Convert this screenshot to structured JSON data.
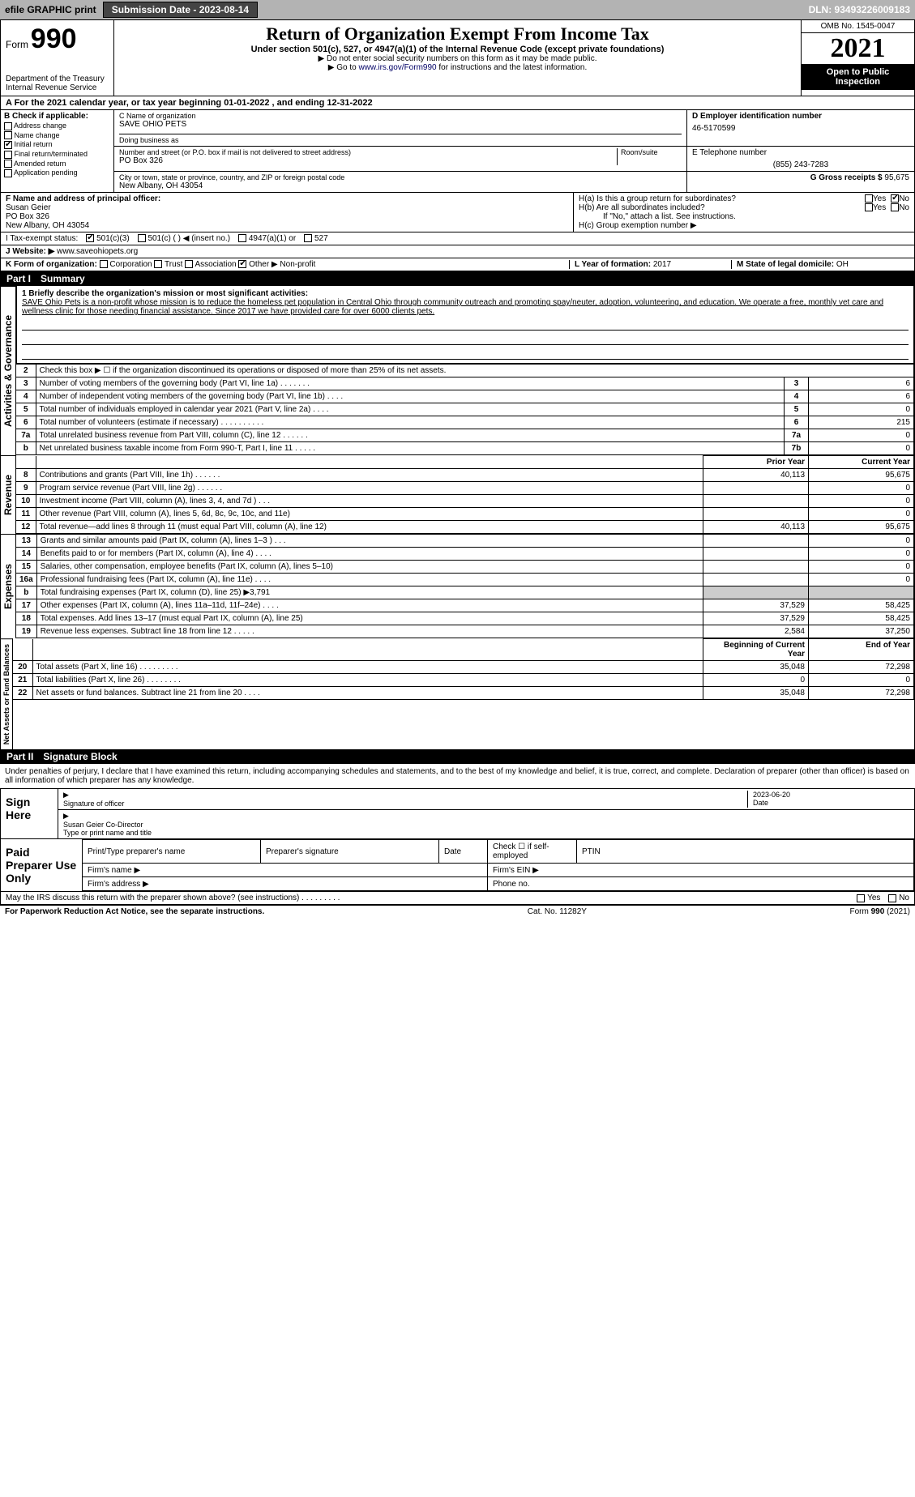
{
  "topbar": {
    "efile_label": "efile GRAPHIC print",
    "submission_label": "Submission Date - 2023-08-14",
    "dln": "DLN: 93493226009183"
  },
  "header": {
    "form_prefix": "Form",
    "form_number": "990",
    "main_title": "Return of Organization Exempt From Income Tax",
    "subtitle": "Under section 501(c), 527, or 4947(a)(1) of the Internal Revenue Code (except private foundations)",
    "ssn_note": "▶ Do not enter social security numbers on this form as it may be made public.",
    "goto": "▶ Go to www.irs.gov/Form990 for instructions and the latest information.",
    "goto_url": "www.irs.gov/Form990",
    "omb": "OMB No. 1545-0047",
    "year": "2021",
    "open_public": "Open to Public Inspection",
    "dept": "Department of the Treasury",
    "irs": "Internal Revenue Service"
  },
  "line_A": "A For the 2021 calendar year, or tax year beginning 01-01-2022   , and ending 12-31-2022",
  "box_B": {
    "header": "B Check if applicable:",
    "opts": [
      "Address change",
      "Name change",
      "Initial return",
      "Final return/terminated",
      "Amended return",
      "Application pending"
    ],
    "checked_idx": 2
  },
  "box_C": {
    "label": "C Name of organization",
    "name": "SAVE OHIO PETS",
    "dba_label": "Doing business as",
    "addr_label": "Number and street (or P.O. box if mail is not delivered to street address)",
    "room_label": "Room/suite",
    "addr": "PO Box 326",
    "city_label": "City or town, state or province, country, and ZIP or foreign postal code",
    "city": "New Albany, OH  43054"
  },
  "box_D": {
    "label": "D Employer identification number",
    "value": "46-5170599"
  },
  "box_E": {
    "label": "E Telephone number",
    "value": "(855) 243-7283"
  },
  "box_G": {
    "label": "G Gross receipts $",
    "value": "95,675"
  },
  "box_F": {
    "label": "F Name and address of principal officer:",
    "name": "Susan Geier",
    "addr1": "PO Box 326",
    "addr2": "New Albany, OH  43054"
  },
  "box_H": {
    "a_label": "H(a)  Is this a group return for subordinates?",
    "a_yes": "Yes",
    "a_no": "No",
    "b_label": "H(b)  Are all subordinates included?",
    "b_yes": "Yes",
    "b_no": "No",
    "note": "If \"No,\" attach a list. See instructions.",
    "c_label": "H(c)  Group exemption number ▶"
  },
  "tax_exempt": {
    "label": "I   Tax-exempt status:",
    "c3": "501(c)(3)",
    "c": "501(c) (  ) ◀ (insert no.)",
    "a4947": "4947(a)(1) or",
    "s527": "527"
  },
  "website": {
    "label": "J   Website: ▶",
    "value": "www.saveohiopets.org"
  },
  "box_K": {
    "label": "K Form of organization:",
    "opts": [
      "Corporation",
      "Trust",
      "Association",
      "Other ▶"
    ],
    "other_val": "Non-profit",
    "checked_idx": 3
  },
  "box_L": {
    "label": "L Year of formation:",
    "value": "2017"
  },
  "box_M": {
    "label": "M State of legal domicile:",
    "value": "OH"
  },
  "part1": {
    "num": "Part I",
    "title": "Summary"
  },
  "mission": {
    "label": "1  Briefly describe the organization's mission or most significant activities:",
    "text": "SAVE Ohio Pets is a non-profit whose mission is to reduce the homeless pet population in Central Ohio through community outreach and promoting spay/neuter, adoption, volunteering, and education. We operate a free, monthly vet care and wellness clinic for those needing financial assistance. Since 2017 we have provided care for over 6000 clients pets."
  },
  "side_labels": {
    "gov": "Activities & Governance",
    "rev": "Revenue",
    "exp": "Expenses",
    "net": "Net Assets or Fund Balances"
  },
  "governance": [
    {
      "n": "2",
      "text": "Check this box ▶ ☐  if the organization discontinued its operations or disposed of more than 25% of its net assets.",
      "numcol": "",
      "val": ""
    },
    {
      "n": "3",
      "text": "Number of voting members of the governing body (Part VI, line 1a)  .     .     .     .     .     .     .",
      "numcol": "3",
      "val": "6"
    },
    {
      "n": "4",
      "text": "Number of independent voting members of the governing body (Part VI, line 1b)  .     .     .     .",
      "numcol": "4",
      "val": "6"
    },
    {
      "n": "5",
      "text": "Total number of individuals employed in calendar year 2021 (Part V, line 2a)  .     .     .     .",
      "numcol": "5",
      "val": "0"
    },
    {
      "n": "6",
      "text": "Total number of volunteers (estimate if necessary)   .     .     .     .     .     .     .     .     .     .",
      "numcol": "6",
      "val": "215"
    },
    {
      "n": "7a",
      "text": "Total unrelated business revenue from Part VIII, column (C), line 12  .     .     .     .     .     .",
      "numcol": "7a",
      "val": "0"
    },
    {
      "n": "b",
      "text": "Net unrelated business taxable income from Form 990-T, Part I, line 11  .     .     .     .     .",
      "numcol": "7b",
      "val": "0"
    }
  ],
  "year_headers": {
    "prior": "Prior Year",
    "current": "Current Year",
    "begin": "Beginning of Current Year",
    "end": "End of Year"
  },
  "revenue": [
    {
      "n": "8",
      "text": "Contributions and grants (Part VIII, line 1h)  .     .     .     .     .     .",
      "prior": "40,113",
      "curr": "95,675"
    },
    {
      "n": "9",
      "text": "Program service revenue (Part VIII, line 2g)  .     .     .     .     .     .",
      "prior": "",
      "curr": "0"
    },
    {
      "n": "10",
      "text": "Investment income (Part VIII, column (A), lines 3, 4, and 7d )  .     .     .",
      "prior": "",
      "curr": "0"
    },
    {
      "n": "11",
      "text": "Other revenue (Part VIII, column (A), lines 5, 6d, 8c, 9c, 10c, and 11e)",
      "prior": "",
      "curr": "0"
    },
    {
      "n": "12",
      "text": "Total revenue—add lines 8 through 11 (must equal Part VIII, column (A), line 12)",
      "prior": "40,113",
      "curr": "95,675"
    }
  ],
  "expenses": [
    {
      "n": "13",
      "text": "Grants and similar amounts paid (Part IX, column (A), lines 1–3 )  .     .     .",
      "prior": "",
      "curr": "0"
    },
    {
      "n": "14",
      "text": "Benefits paid to or for members (Part IX, column (A), line 4)  .     .     .     .",
      "prior": "",
      "curr": "0"
    },
    {
      "n": "15",
      "text": "Salaries, other compensation, employee benefits (Part IX, column (A), lines 5–10)",
      "prior": "",
      "curr": "0"
    },
    {
      "n": "16a",
      "text": "Professional fundraising fees (Part IX, column (A), line 11e)  .     .     .     .",
      "prior": "",
      "curr": "0"
    },
    {
      "n": "b",
      "text": "Total fundraising expenses (Part IX, column (D), line 25) ▶3,791",
      "prior": "—",
      "curr": "—"
    },
    {
      "n": "17",
      "text": "Other expenses (Part IX, column (A), lines 11a–11d, 11f–24e)  .     .     .     .",
      "prior": "37,529",
      "curr": "58,425"
    },
    {
      "n": "18",
      "text": "Total expenses. Add lines 13–17 (must equal Part IX, column (A), line 25)",
      "prior": "37,529",
      "curr": "58,425"
    },
    {
      "n": "19",
      "text": "Revenue less expenses. Subtract line 18 from line 12  .     .     .     .     .",
      "prior": "2,584",
      "curr": "37,250"
    }
  ],
  "netassets": [
    {
      "n": "20",
      "text": "Total assets (Part X, line 16)  .     .     .     .     .     .     .     .     .",
      "prior": "35,048",
      "curr": "72,298"
    },
    {
      "n": "21",
      "text": "Total liabilities (Part X, line 26)  .     .     .     .     .     .     .     .",
      "prior": "0",
      "curr": "0"
    },
    {
      "n": "22",
      "text": "Net assets or fund balances. Subtract line 21 from line 20  .     .     .     .",
      "prior": "35,048",
      "curr": "72,298"
    }
  ],
  "part2": {
    "num": "Part II",
    "title": "Signature Block"
  },
  "penalty": "Under penalties of perjury, I declare that I have examined this return, including accompanying schedules and statements, and to the best of my knowledge and belief, it is true, correct, and complete. Declaration of preparer (other than officer) is based on all information of which preparer has any knowledge.",
  "sign": {
    "label": "Sign Here",
    "sig_of_officer": "Signature of officer",
    "date": "Date",
    "date_val": "2023-06-20",
    "name_title": "Susan Geier  Co-Director",
    "type_print": "Type or print name and title"
  },
  "paid": {
    "label": "Paid Preparer Use Only",
    "print_name": "Print/Type preparer's name",
    "prep_sig": "Preparer's signature",
    "date": "Date",
    "check_self": "Check ☐ if self-employed",
    "ptin": "PTIN",
    "firm_name": "Firm's name  ▶",
    "firm_ein": "Firm's EIN ▶",
    "firm_addr": "Firm's address ▶",
    "phone": "Phone no."
  },
  "discuss": {
    "text": "May the IRS discuss this return with the preparer shown above? (see instructions)  .     .     .     .     .     .     .     .     .",
    "yes": "Yes",
    "no": "No"
  },
  "footer": {
    "left": "For Paperwork Reduction Act Notice, see the separate instructions.",
    "mid": "Cat. No. 11282Y",
    "right": "Form 990 (2021)"
  },
  "colors": {
    "topbar_bg": "#b3b3b3",
    "black": "#000000",
    "link": "#003366"
  }
}
